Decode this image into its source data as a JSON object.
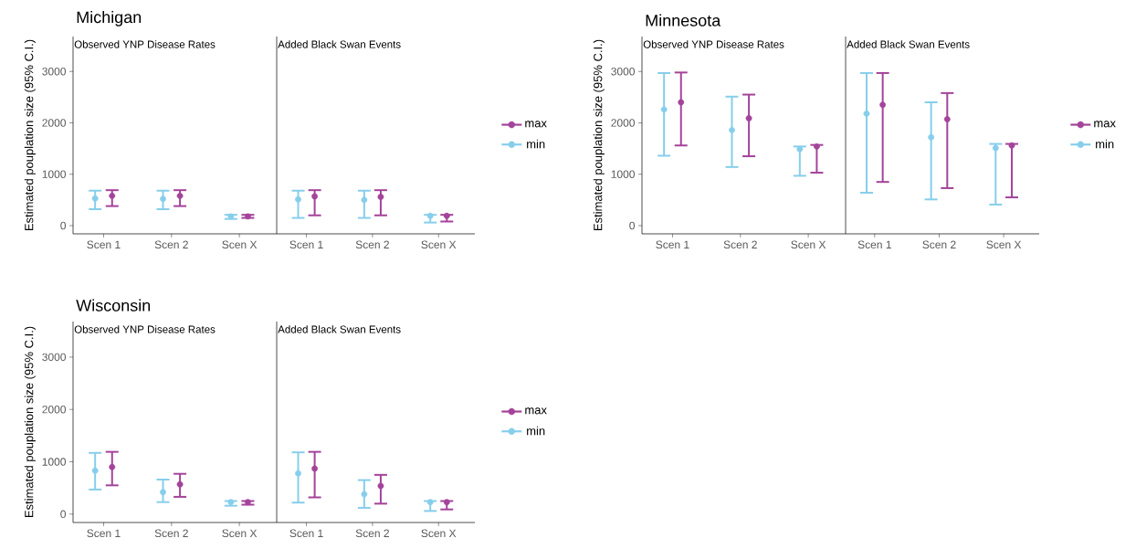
{
  "chart_data": [
    {
      "type": "scatter",
      "title": "Michigan",
      "subtitle": "Observed YNP Disease Rates",
      "ylabel": "Estimated pouplation size (95% C.I.)",
      "categories": [
        "Scen 1",
        "Scen 2",
        "Scen X"
      ],
      "ylim": [
        -160,
        3680
      ],
      "yticks": [
        0,
        1000,
        2000,
        3000
      ],
      "marker": "circle",
      "legend": "right",
      "series": [
        {
          "name": "max",
          "color": "#a4439a",
          "values": [
            580,
            580,
            180
          ],
          "errors": [
            [
              380,
              690
            ],
            [
              380,
              690
            ],
            [
              150,
              210
            ]
          ]
        },
        {
          "name": "min",
          "color": "#87ceeb",
          "values": [
            530,
            520,
            180
          ],
          "errors": [
            [
              320,
              680
            ],
            [
              320,
              680
            ],
            [
              130,
              210
            ]
          ]
        }
      ]
    },
    {
      "type": "scatter",
      "subtitle": "Added Black Swan Events",
      "categories": [
        "Scen 1",
        "Scen 2",
        "Scen X"
      ],
      "ylim": [
        -160,
        3680
      ],
      "yticks": [
        0,
        1000,
        2000,
        3000
      ],
      "marker": "circle",
      "tick_labels": "x",
      "series": [
        {
          "color": "#a4439a",
          "values": [
            570,
            560,
            190
          ],
          "errors": [
            [
              200,
              690
            ],
            [
              200,
              690
            ],
            [
              80,
              210
            ]
          ]
        },
        {
          "color": "#87ceeb",
          "values": [
            510,
            500,
            190
          ],
          "errors": [
            [
              150,
              680
            ],
            [
              150,
              680
            ],
            [
              60,
              210
            ]
          ]
        }
      ]
    },
    {
      "type": "scatter",
      "title": "Minnesota",
      "subtitle": "Observed YNP Disease Rates",
      "ylabel": "Estimated pouplation size (95% C.I.)",
      "categories": [
        "Scen 1",
        "Scen 2",
        "Scen X"
      ],
      "ylim": [
        -160,
        3680
      ],
      "yticks": [
        0,
        1000,
        2000,
        3000
      ],
      "marker": "circle",
      "legend": "right",
      "series": [
        {
          "name": "max",
          "color": "#a4439a",
          "values": [
            2400,
            2090,
            1540
          ],
          "errors": [
            [
              1560,
              2980
            ],
            [
              1350,
              2550
            ],
            [
              1030,
              1570
            ]
          ]
        },
        {
          "name": "min",
          "color": "#87ceeb",
          "values": [
            2260,
            1860,
            1490
          ],
          "errors": [
            [
              1360,
              2970
            ],
            [
              1140,
              2510
            ],
            [
              970,
              1540
            ]
          ]
        }
      ]
    },
    {
      "type": "scatter",
      "subtitle": "Added Black Swan Events",
      "categories": [
        "Scen 1",
        "Scen 2",
        "Scen X"
      ],
      "ylim": [
        -160,
        3680
      ],
      "yticks": [
        0,
        1000,
        2000,
        3000
      ],
      "marker": "circle",
      "tick_labels": "x",
      "series": [
        {
          "color": "#a4439a",
          "values": [
            2350,
            2070,
            1560
          ],
          "errors": [
            [
              850,
              2970
            ],
            [
              730,
              2580
            ],
            [
              550,
              1590
            ]
          ]
        },
        {
          "color": "#87ceeb",
          "values": [
            2180,
            1720,
            1510
          ],
          "errors": [
            [
              640,
              2970
            ],
            [
              510,
              2400
            ],
            [
              410,
              1590
            ]
          ]
        }
      ]
    },
    {
      "type": "scatter",
      "title": "Wisconsin",
      "subtitle": "Observed YNP Disease Rates",
      "ylabel": "Estimated pouplation size (95% C.I.)",
      "categories": [
        "Scen 1",
        "Scen 2",
        "Scen X"
      ],
      "ylim": [
        -160,
        3680
      ],
      "yticks": [
        0,
        1000,
        2000,
        3000
      ],
      "marker": "circle",
      "legend": "right",
      "series": [
        {
          "name": "max",
          "color": "#a4439a",
          "values": [
            900,
            570,
            230
          ],
          "errors": [
            [
              550,
              1190
            ],
            [
              330,
              770
            ],
            [
              180,
              250
            ]
          ]
        },
        {
          "name": "min",
          "color": "#87ceeb",
          "values": [
            830,
            420,
            230
          ],
          "errors": [
            [
              470,
              1170
            ],
            [
              230,
              660
            ],
            [
              160,
              250
            ]
          ]
        }
      ]
    },
    {
      "type": "scatter",
      "subtitle": "Added Black Swan Events",
      "categories": [
        "Scen 1",
        "Scen 2",
        "Scen X"
      ],
      "ylim": [
        -160,
        3680
      ],
      "yticks": [
        0,
        1000,
        2000,
        3000
      ],
      "marker": "circle",
      "tick_labels": "x",
      "series": [
        {
          "color": "#a4439a",
          "values": [
            870,
            540,
            230
          ],
          "errors": [
            [
              320,
              1190
            ],
            [
              200,
              750
            ],
            [
              90,
              250
            ]
          ]
        },
        {
          "color": "#87ceeb",
          "values": [
            780,
            380,
            230
          ],
          "errors": [
            [
              220,
              1180
            ],
            [
              120,
              650
            ],
            [
              60,
              250
            ]
          ]
        }
      ]
    }
  ]
}
